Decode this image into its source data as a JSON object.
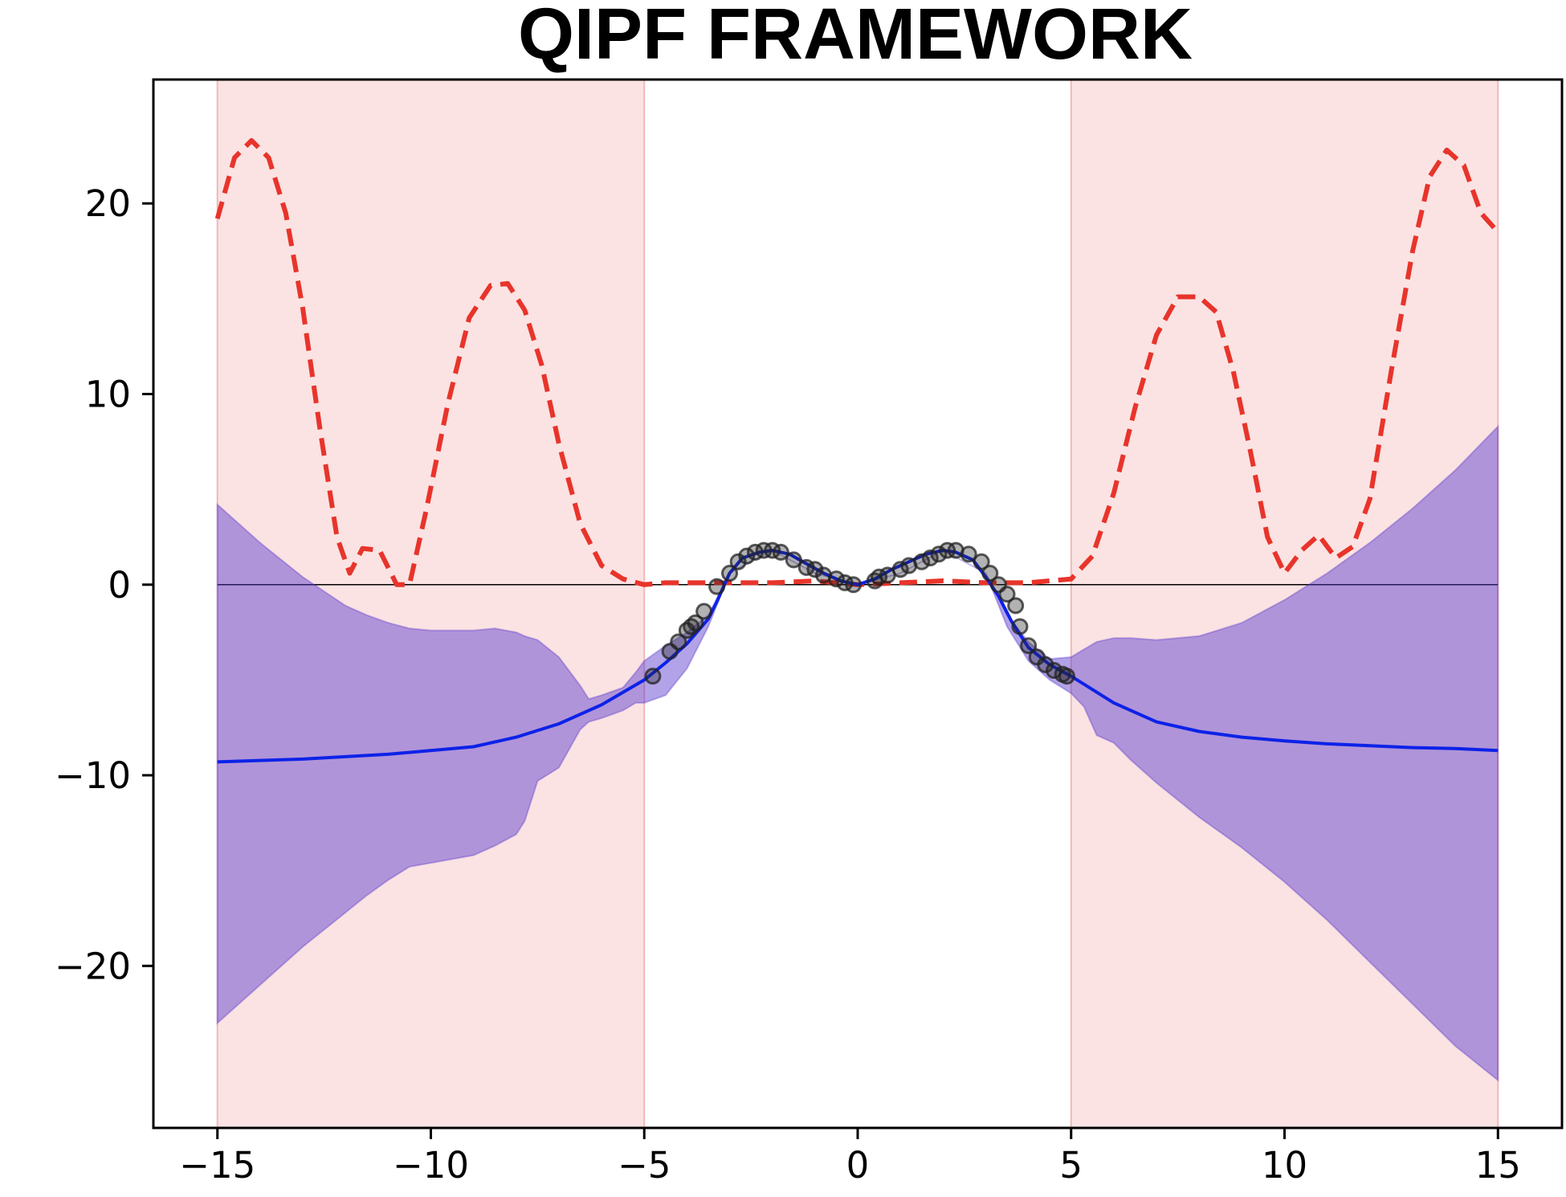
{
  "chart_data": {
    "type": "line",
    "title": "QIPF  FRAMEWORK",
    "xlabel": "",
    "ylabel": "",
    "xlim": [
      -16.5,
      16.5
    ],
    "ylim": [
      -28.5,
      26.5
    ],
    "grid": false,
    "legend": "none",
    "x_ticks": [
      -15,
      -10,
      -5,
      0,
      5,
      10,
      15
    ],
    "x_tick_labels": [
      "−15",
      "−10",
      "−5",
      "0",
      "5",
      "10",
      "15"
    ],
    "y_ticks": [
      20,
      10,
      0,
      -10,
      -20
    ],
    "y_tick_labels": [
      "20",
      "10",
      "0",
      "−10",
      "−20"
    ],
    "shaded_regions": [
      {
        "x_start": -15,
        "x_end": -5,
        "color": "#f7cccc"
      },
      {
        "x_start": 5,
        "x_end": 15,
        "color": "#f7cccc"
      }
    ],
    "reference_line": {
      "y": 0,
      "color": "#000000"
    },
    "series": [
      {
        "kind": "dashed-line",
        "color": "#e8342b",
        "x": [
          -15,
          -14.6,
          -14.2,
          -13.8,
          -13.4,
          -13,
          -12.6,
          -12.2,
          -11.9,
          -11.6,
          -11.2,
          -10.8,
          -10.5,
          -10.1,
          -9.6,
          -9.1,
          -8.6,
          -8.2,
          -7.8,
          -7.4,
          -7,
          -6.5,
          -6,
          -5.5,
          -5,
          -4.5,
          -4,
          -3,
          -2,
          -1,
          0,
          1,
          2,
          3,
          4,
          4.5,
          5,
          5.5,
          6,
          6.5,
          7,
          7.5,
          8,
          8.4,
          8.8,
          9.2,
          9.6,
          10,
          10.4,
          10.8,
          11.2,
          11.6,
          12,
          12.5,
          13,
          13.4,
          13.8,
          14.2,
          14.6,
          15
        ],
        "y": [
          19.2,
          22.4,
          23.3,
          22.4,
          19.5,
          14.5,
          8.2,
          2.5,
          0.6,
          1.9,
          1.8,
          0.0,
          0.0,
          4.0,
          9.5,
          14.0,
          15.7,
          15.8,
          14.4,
          11.5,
          7.4,
          3.2,
          1.0,
          0.3,
          0.0,
          0.1,
          0.1,
          0.1,
          0.1,
          0.2,
          0.0,
          0.1,
          0.2,
          0.1,
          0.1,
          0.2,
          0.3,
          1.5,
          4.8,
          9.3,
          13.1,
          15.1,
          15.1,
          14.3,
          11.2,
          7.0,
          2.5,
          0.6,
          1.8,
          2.6,
          1.4,
          2.0,
          4.5,
          11.2,
          17.5,
          21.4,
          22.8,
          22.0,
          19.5,
          18.5
        ]
      },
      {
        "kind": "solid-line",
        "color": "#0d22e8",
        "x": [
          -15,
          -13,
          -11,
          -9,
          -8,
          -7,
          -6,
          -5,
          -4.5,
          -4,
          -3.5,
          -3.3,
          -3,
          -2.7,
          -2.3,
          -2,
          -1.6,
          -1.2,
          -0.8,
          -0.4,
          0,
          0.4,
          0.8,
          1.2,
          1.6,
          2,
          2.3,
          2.7,
          3,
          3.3,
          3.6,
          4,
          4.5,
          5,
          6,
          7,
          8,
          9,
          10,
          11,
          12,
          13,
          14,
          15
        ],
        "y": [
          -9.3,
          -9.15,
          -8.9,
          -8.5,
          -8.0,
          -7.3,
          -6.3,
          -5.0,
          -4.1,
          -3.1,
          -1.8,
          -0.9,
          0.6,
          1.4,
          1.7,
          1.8,
          1.6,
          1.1,
          0.6,
          0.2,
          0.0,
          0.3,
          0.8,
          1.2,
          1.6,
          1.8,
          1.7,
          1.3,
          0.4,
          -0.6,
          -1.9,
          -3.3,
          -4.2,
          -4.8,
          -6.2,
          -7.2,
          -7.7,
          -8.0,
          -8.2,
          -8.35,
          -8.45,
          -8.55,
          -8.6,
          -8.7
        ]
      },
      {
        "kind": "confidence-band",
        "color": "#5533cc",
        "x": [
          -15,
          -14,
          -13,
          -12,
          -11.5,
          -11,
          -10.5,
          -10,
          -9.5,
          -9,
          -8.5,
          -8,
          -7.8,
          -7.5,
          -7,
          -6.5,
          -6.3,
          -6,
          -5.5,
          -5.2,
          -5,
          -4.5,
          -4,
          -3.5,
          -3,
          -2,
          -1,
          0,
          1,
          2,
          3,
          3.5,
          4,
          4.5,
          5,
          5.3,
          5.6,
          6,
          6.4,
          7,
          8,
          9,
          10,
          11,
          12,
          13,
          14,
          15
        ],
        "upper": [
          4.2,
          2.2,
          0.4,
          -1.1,
          -1.6,
          -2.0,
          -2.3,
          -2.4,
          -2.4,
          -2.4,
          -2.3,
          -2.5,
          -2.7,
          -2.9,
          -3.8,
          -5.3,
          -6.0,
          -5.8,
          -5.4,
          -4.6,
          -4.0,
          -3.2,
          -2.5,
          -1.6,
          0.6,
          1.8,
          0.6,
          0.0,
          0.6,
          1.8,
          0.6,
          -1.6,
          -3.0,
          -3.9,
          -3.8,
          -3.4,
          -3.0,
          -2.8,
          -2.8,
          -2.9,
          -2.7,
          -2.0,
          -0.8,
          0.6,
          2.2,
          4.0,
          6.0,
          8.3
        ],
        "lower": [
          -23.0,
          -21.0,
          -19.0,
          -17.2,
          -16.3,
          -15.5,
          -14.8,
          -14.6,
          -14.4,
          -14.2,
          -13.7,
          -13.1,
          -12.4,
          -10.3,
          -9.6,
          -7.6,
          -7.2,
          -7.0,
          -6.6,
          -6.2,
          -6.2,
          -5.8,
          -4.4,
          -2.2,
          0.6,
          1.8,
          0.6,
          0.0,
          0.6,
          1.8,
          0.6,
          -2.2,
          -4.0,
          -5.0,
          -5.7,
          -6.4,
          -7.9,
          -8.3,
          -9.2,
          -10.4,
          -12.2,
          -13.8,
          -15.6,
          -17.6,
          -19.8,
          -22.0,
          -24.2,
          -26.0
        ]
      },
      {
        "kind": "scatter",
        "color": "#222222",
        "x": [
          -4.8,
          -4.4,
          -4.2,
          -4.0,
          -3.9,
          -3.8,
          -3.6,
          -3.3,
          -3.0,
          -2.8,
          -2.6,
          -2.4,
          -2.2,
          -2.0,
          -1.8,
          -1.5,
          -1.2,
          -1.0,
          -0.8,
          -0.5,
          -0.3,
          -0.1,
          0.4,
          0.5,
          0.7,
          1.0,
          1.2,
          1.5,
          1.7,
          1.9,
          2.1,
          2.3,
          2.6,
          2.9,
          3.1,
          3.3,
          3.5,
          3.7,
          3.8,
          4.0,
          4.2,
          4.4,
          4.6,
          4.8,
          4.9
        ],
        "y": [
          -4.8,
          -3.5,
          -3.0,
          -2.4,
          -2.2,
          -2.0,
          -1.4,
          -0.1,
          0.6,
          1.2,
          1.5,
          1.7,
          1.8,
          1.8,
          1.7,
          1.3,
          0.9,
          0.8,
          0.5,
          0.3,
          0.1,
          0.0,
          0.2,
          0.4,
          0.5,
          0.8,
          1.0,
          1.2,
          1.4,
          1.6,
          1.8,
          1.8,
          1.6,
          1.2,
          0.6,
          0.0,
          -0.5,
          -1.1,
          -2.2,
          -3.2,
          -3.8,
          -4.2,
          -4.5,
          -4.7,
          -4.8
        ]
      }
    ]
  }
}
